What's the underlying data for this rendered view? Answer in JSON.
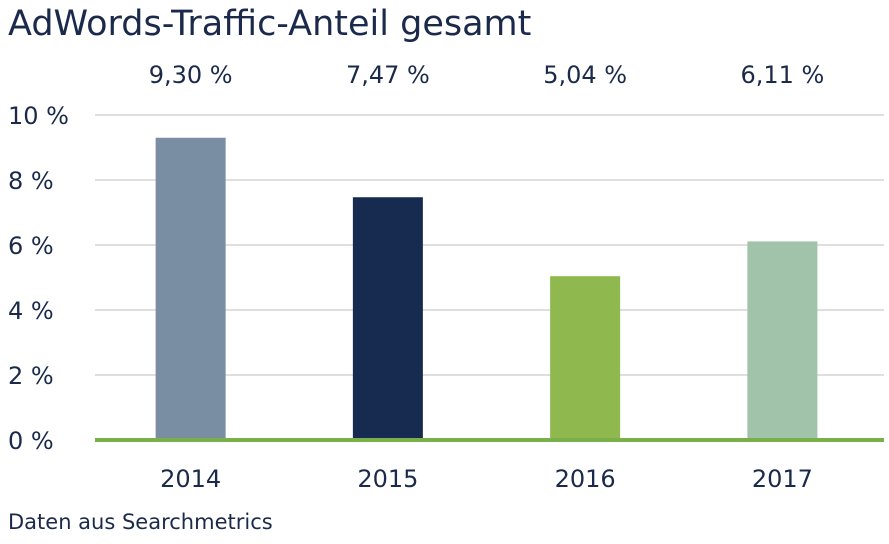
{
  "chart_data": {
    "type": "bar",
    "title": "AdWords-Traffic-Anteil gesamt",
    "source_note": "Daten aus Searchmetrics",
    "categories": [
      "2014",
      "2015",
      "2016",
      "2017"
    ],
    "values": [
      9.3,
      7.47,
      5.04,
      6.11
    ],
    "value_labels": [
      "9,30 %",
      "7,47 %",
      "5,04 %",
      "6,11 %"
    ],
    "bar_colors": [
      "#7a8ea3",
      "#172a50",
      "#8fb94f",
      "#a1c3a9"
    ],
    "y_ticks": [
      0,
      2,
      4,
      6,
      8,
      10
    ],
    "y_tick_labels": [
      "0 %",
      "2 %",
      "4 %",
      "6 %",
      "8 %",
      "10 %"
    ],
    "ylim": [
      0,
      10
    ],
    "xlabel": "",
    "ylabel": "",
    "grid": true,
    "baseline_color": "#7ab04a",
    "grid_color": "#bfbfbf",
    "text_color": "#1b2a4a"
  }
}
